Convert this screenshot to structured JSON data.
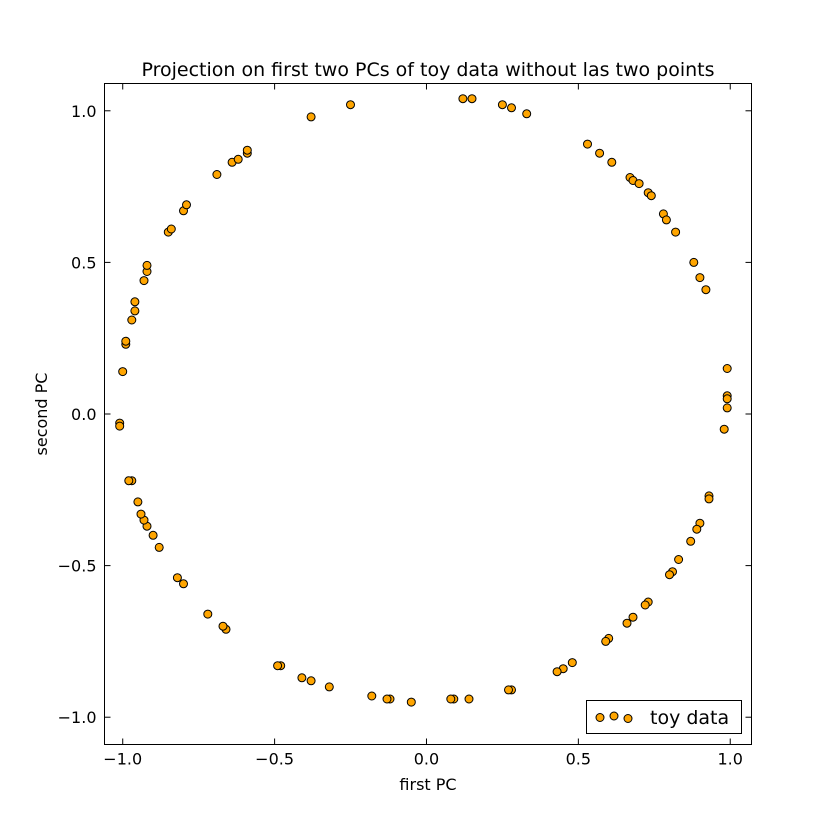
{
  "chart_data": {
    "type": "scatter",
    "title": "Projection on first two PCs of toy data without las two points",
    "xlabel": "first PC",
    "ylabel": "second PC",
    "xlim": [
      -1.06,
      1.07
    ],
    "ylim": [
      -1.09,
      1.09
    ],
    "xticks": [
      -1.0,
      -0.5,
      0.0,
      0.5,
      1.0
    ],
    "yticks": [
      -1.0,
      -0.5,
      0.0,
      0.5,
      1.0
    ],
    "xtick_labels": [
      "−1.0",
      "−0.5",
      "0.0",
      "0.5",
      "1.0"
    ],
    "ytick_labels": [
      "−1.0",
      "−0.5",
      "0.0",
      "0.5",
      "1.0"
    ],
    "grid": false,
    "legend_position": "lower-right",
    "series": [
      {
        "name": "toy data",
        "color": "#FFA500",
        "edge_color": "#000000",
        "points": [
          [
            0.12,
            1.04
          ],
          [
            0.15,
            1.04
          ],
          [
            0.25,
            1.02
          ],
          [
            0.28,
            1.01
          ],
          [
            0.33,
            0.99
          ],
          [
            -0.25,
            1.02
          ],
          [
            -0.38,
            0.98
          ],
          [
            0.53,
            0.89
          ],
          [
            0.57,
            0.86
          ],
          [
            0.61,
            0.83
          ],
          [
            0.67,
            0.78
          ],
          [
            0.68,
            0.77
          ],
          [
            0.7,
            0.76
          ],
          [
            0.73,
            0.73
          ],
          [
            0.74,
            0.72
          ],
          [
            0.78,
            0.66
          ],
          [
            0.79,
            0.64
          ],
          [
            0.82,
            0.6
          ],
          [
            0.88,
            0.5
          ],
          [
            0.9,
            0.45
          ],
          [
            0.92,
            0.41
          ],
          [
            0.99,
            0.15
          ],
          [
            0.99,
            0.06
          ],
          [
            0.99,
            0.05
          ],
          [
            0.99,
            0.02
          ],
          [
            0.98,
            -0.05
          ],
          [
            0.93,
            -0.27
          ],
          [
            0.93,
            -0.28
          ],
          [
            0.9,
            -0.36
          ],
          [
            0.89,
            -0.38
          ],
          [
            0.87,
            -0.42
          ],
          [
            0.83,
            -0.48
          ],
          [
            0.81,
            -0.52
          ],
          [
            0.8,
            -0.53
          ],
          [
            0.73,
            -0.62
          ],
          [
            0.72,
            -0.63
          ],
          [
            0.68,
            -0.67
          ],
          [
            0.66,
            -0.69
          ],
          [
            0.6,
            -0.74
          ],
          [
            0.59,
            -0.75
          ],
          [
            0.48,
            -0.82
          ],
          [
            0.45,
            -0.84
          ],
          [
            0.43,
            -0.85
          ],
          [
            0.28,
            -0.91
          ],
          [
            0.27,
            -0.91
          ],
          [
            0.14,
            -0.94
          ],
          [
            0.09,
            -0.94
          ],
          [
            0.08,
            -0.94
          ],
          [
            -0.05,
            -0.95
          ],
          [
            -0.12,
            -0.94
          ],
          [
            -0.13,
            -0.94
          ],
          [
            -0.18,
            -0.93
          ],
          [
            -0.32,
            -0.9
          ],
          [
            -0.38,
            -0.88
          ],
          [
            -0.41,
            -0.87
          ],
          [
            -0.48,
            -0.83
          ],
          [
            -0.49,
            -0.83
          ],
          [
            -0.66,
            -0.71
          ],
          [
            -0.67,
            -0.7
          ],
          [
            -0.72,
            -0.66
          ],
          [
            -0.8,
            -0.56
          ],
          [
            -0.82,
            -0.54
          ],
          [
            -0.88,
            -0.44
          ],
          [
            -0.9,
            -0.4
          ],
          [
            -0.92,
            -0.37
          ],
          [
            -0.93,
            -0.35
          ],
          [
            -0.94,
            -0.33
          ],
          [
            -0.95,
            -0.29
          ],
          [
            -0.97,
            -0.22
          ],
          [
            -0.98,
            -0.22
          ],
          [
            -1.01,
            -0.03
          ],
          [
            -1.01,
            -0.04
          ],
          [
            -1.0,
            0.14
          ],
          [
            -0.99,
            0.23
          ],
          [
            -0.99,
            0.24
          ],
          [
            -0.97,
            0.31
          ],
          [
            -0.96,
            0.34
          ],
          [
            -0.96,
            0.37
          ],
          [
            -0.93,
            0.44
          ],
          [
            -0.92,
            0.47
          ],
          [
            -0.92,
            0.49
          ],
          [
            -0.85,
            0.6
          ],
          [
            -0.84,
            0.61
          ],
          [
            -0.8,
            0.67
          ],
          [
            -0.79,
            0.69
          ],
          [
            -0.69,
            0.79
          ],
          [
            -0.64,
            0.83
          ],
          [
            -0.62,
            0.84
          ],
          [
            -0.59,
            0.86
          ],
          [
            -0.59,
            0.87
          ]
        ]
      }
    ]
  }
}
